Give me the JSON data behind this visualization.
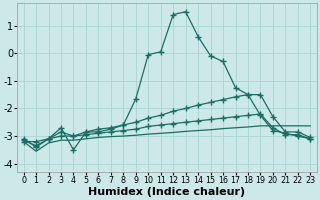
{
  "xlabel": "Humidex (Indice chaleur)",
  "background_color": "#cce8e8",
  "grid_color": "#aad4d4",
  "line_color": "#1a6e64",
  "xlim": [
    -0.5,
    23.5
  ],
  "ylim": [
    -4.3,
    1.8
  ],
  "xticks": [
    0,
    1,
    2,
    3,
    4,
    5,
    6,
    7,
    8,
    9,
    10,
    11,
    12,
    13,
    14,
    15,
    16,
    17,
    18,
    19,
    20,
    21,
    22,
    23
  ],
  "yticks": [
    -4,
    -3,
    -2,
    -1,
    0,
    1
  ],
  "curve1_x": [
    0,
    1,
    2,
    3,
    4,
    5,
    6,
    7,
    8,
    9,
    10,
    11,
    12,
    13,
    14,
    15,
    16,
    17,
    18,
    19,
    20,
    21,
    22,
    23
  ],
  "curve1_y": [
    -3.1,
    -3.4,
    -3.1,
    -2.7,
    -3.5,
    -2.85,
    -2.85,
    -2.75,
    -2.6,
    -1.65,
    -0.05,
    0.05,
    1.4,
    1.5,
    0.6,
    -0.1,
    -0.3,
    -1.25,
    -1.5,
    -2.25,
    -2.8,
    -2.9,
    -3.0,
    -3.1
  ],
  "curve2_x": [
    0,
    1,
    2,
    3,
    4,
    5,
    6,
    7,
    8,
    9,
    10,
    11,
    12,
    13,
    14,
    15,
    16,
    17,
    18,
    19,
    20,
    21,
    22,
    23
  ],
  "curve2_y": [
    -3.2,
    -3.2,
    -3.1,
    -2.85,
    -3.0,
    -2.85,
    -2.75,
    -2.7,
    -2.6,
    -2.5,
    -2.35,
    -2.25,
    -2.1,
    -2.0,
    -1.88,
    -1.78,
    -1.68,
    -1.58,
    -1.5,
    -1.5,
    -2.3,
    -2.85,
    -2.85,
    -3.05
  ],
  "curve3_x": [
    0,
    1,
    2,
    3,
    4,
    5,
    6,
    7,
    8,
    9,
    10,
    11,
    12,
    13,
    14,
    15,
    16,
    17,
    18,
    19,
    20,
    21,
    22,
    23
  ],
  "curve3_y": [
    -3.15,
    -3.35,
    -3.1,
    -3.0,
    -3.0,
    -2.95,
    -2.9,
    -2.85,
    -2.8,
    -2.75,
    -2.65,
    -2.6,
    -2.55,
    -2.5,
    -2.45,
    -2.4,
    -2.35,
    -2.3,
    -2.25,
    -2.2,
    -2.7,
    -2.95,
    -2.95,
    -3.1
  ],
  "curve4_x": [
    0,
    1,
    2,
    3,
    4,
    5,
    6,
    7,
    8,
    9,
    10,
    11,
    12,
    13,
    14,
    15,
    16,
    17,
    18,
    19,
    20,
    21,
    22,
    23
  ],
  "curve4_y": [
    -3.2,
    -3.55,
    -3.25,
    -3.15,
    -3.15,
    -3.1,
    -3.05,
    -3.02,
    -3.0,
    -2.97,
    -2.93,
    -2.9,
    -2.87,
    -2.83,
    -2.8,
    -2.77,
    -2.73,
    -2.7,
    -2.67,
    -2.63,
    -2.63,
    -2.63,
    -2.63,
    -2.63
  ]
}
